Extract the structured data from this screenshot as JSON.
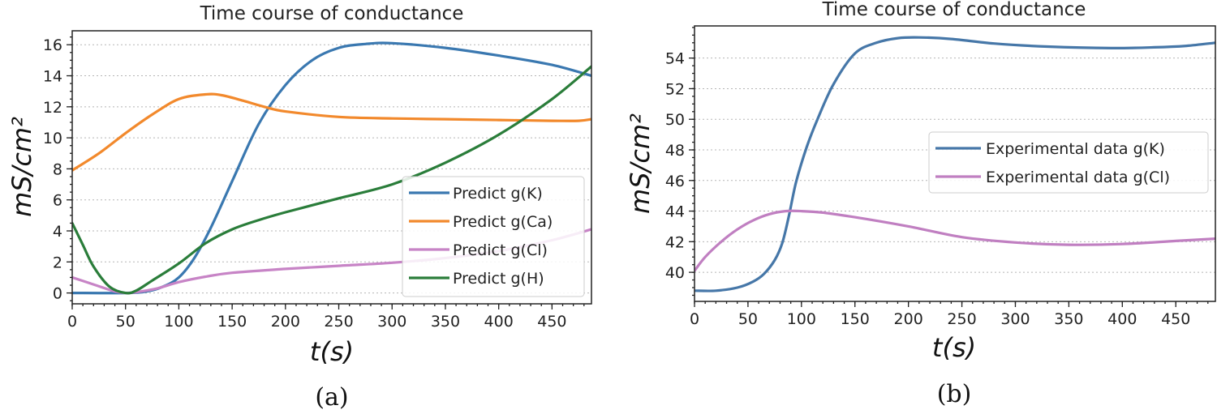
{
  "chart_data": [
    {
      "type": "line",
      "panel": "a",
      "caption": "(a)",
      "title": "Time course of conductance",
      "xlabel": "t(s)",
      "ylabel": "mS/cm²",
      "xlim": [
        0,
        487
      ],
      "ylim": [
        -0.7,
        16.9
      ],
      "xticks": [
        0,
        50,
        100,
        150,
        200,
        250,
        300,
        350,
        400,
        450
      ],
      "yticks": [
        0,
        2,
        4,
        6,
        8,
        10,
        12,
        14,
        16
      ],
      "grid": "y",
      "legend_position": "lower-right",
      "series": [
        {
          "name": "Predict g(K)",
          "color": "#3a78b0",
          "x": [
            0,
            50,
            70,
            85,
            100,
            115,
            130,
            150,
            175,
            200,
            225,
            250,
            275,
            300,
            350,
            400,
            450,
            487
          ],
          "y": [
            0,
            0,
            0.1,
            0.4,
            1.0,
            2.3,
            4.2,
            7.2,
            10.9,
            13.4,
            15.0,
            15.8,
            16.05,
            16.1,
            15.8,
            15.3,
            14.7,
            14.0
          ]
        },
        {
          "name": "Predict g(Ca)",
          "color": "#f2892c",
          "x": [
            0,
            25,
            50,
            75,
            100,
            125,
            140,
            160,
            180,
            200,
            250,
            300,
            350,
            400,
            450,
            475,
            487
          ],
          "y": [
            7.9,
            9.0,
            10.3,
            11.5,
            12.5,
            12.8,
            12.75,
            12.4,
            12.0,
            11.7,
            11.35,
            11.25,
            11.2,
            11.15,
            11.1,
            11.1,
            11.2
          ]
        },
        {
          "name": "Predict g(Cl)",
          "color": "#c784c6",
          "x": [
            0,
            20,
            40,
            50,
            60,
            80,
            100,
            125,
            150,
            200,
            250,
            300,
            350,
            400,
            450,
            487
          ],
          "y": [
            1.0,
            0.55,
            0.1,
            0.0,
            0.05,
            0.3,
            0.7,
            1.05,
            1.3,
            1.55,
            1.75,
            1.95,
            2.25,
            2.7,
            3.4,
            4.1
          ]
        },
        {
          "name": "Predict g(H)",
          "color": "#2a7d3a",
          "x": [
            0,
            10,
            20,
            35,
            50,
            60,
            75,
            100,
            125,
            150,
            175,
            200,
            250,
            300,
            350,
            400,
            450,
            487
          ],
          "y": [
            4.5,
            3.1,
            1.7,
            0.4,
            0.0,
            0.15,
            0.8,
            1.9,
            3.2,
            4.1,
            4.7,
            5.2,
            6.1,
            7.0,
            8.4,
            10.2,
            12.5,
            14.6
          ]
        }
      ]
    },
    {
      "type": "line",
      "panel": "b",
      "caption": "(b)",
      "title": "Time course of conductance",
      "xlabel": "t(s)",
      "ylabel": "mS/cm²",
      "xlim": [
        0,
        487
      ],
      "ylim": [
        38.1,
        56.1
      ],
      "xticks": [
        0,
        50,
        100,
        150,
        200,
        250,
        300,
        350,
        400,
        450
      ],
      "yticks": [
        40,
        42,
        44,
        46,
        48,
        50,
        52,
        54
      ],
      "grid": "y",
      "legend_position": "center-right",
      "series": [
        {
          "name": "Experimental data g(K)",
          "color": "#4677a8",
          "x": [
            0,
            20,
            40,
            55,
            65,
            75,
            82,
            88,
            95,
            105,
            115,
            130,
            150,
            170,
            190,
            210,
            240,
            280,
            330,
            390,
            430,
            460,
            487
          ],
          "y": [
            38.8,
            38.8,
            39.0,
            39.4,
            39.9,
            40.8,
            41.9,
            43.6,
            45.9,
            48.2,
            50.0,
            52.3,
            54.3,
            55.0,
            55.3,
            55.35,
            55.25,
            54.95,
            54.75,
            54.65,
            54.7,
            54.8,
            55.0
          ]
        },
        {
          "name": "Experimental data g(Cl)",
          "color": "#c07fc1",
          "x": [
            0,
            10,
            25,
            40,
            55,
            70,
            85,
            100,
            120,
            150,
            200,
            250,
            300,
            350,
            400,
            450,
            487
          ],
          "y": [
            40.1,
            41.0,
            42.0,
            42.8,
            43.4,
            43.8,
            44.0,
            44.0,
            43.9,
            43.6,
            43.0,
            42.3,
            41.95,
            41.8,
            41.85,
            42.05,
            42.2
          ]
        }
      ]
    }
  ]
}
